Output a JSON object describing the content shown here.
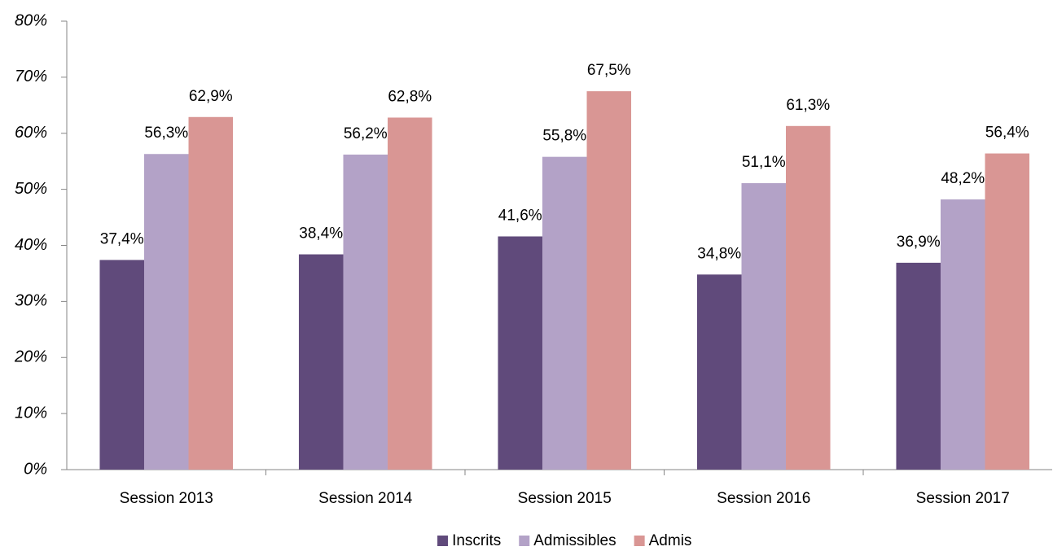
{
  "chart_data": {
    "type": "bar",
    "categories": [
      "Session 2013",
      "Session 2014",
      "Session 2015",
      "Session 2016",
      "Session 2017"
    ],
    "series": [
      {
        "name": "Inscrits",
        "color": "#604a7b",
        "label_color": "#000000",
        "values": [
          37.4,
          38.4,
          41.6,
          34.8,
          36.9
        ],
        "value_labels": [
          "37,4%",
          "38,4%",
          "41,6%",
          "34,8%",
          "36,9%"
        ]
      },
      {
        "name": "Admissibles",
        "color": "#b3a2c7",
        "label_color": "#604a7b",
        "values": [
          56.3,
          56.2,
          55.8,
          51.1,
          48.2
        ],
        "value_labels": [
          "56,3%",
          "56,2%",
          "55,8%",
          "51,1%",
          "48,2%"
        ]
      },
      {
        "name": "Admis",
        "color": "#d99694",
        "label_color": "#632523",
        "values": [
          62.9,
          62.8,
          67.5,
          61.3,
          56.4
        ],
        "value_labels": [
          "62,9%",
          "62,8%",
          "67,5%",
          "61,3%",
          "56,4%"
        ]
      }
    ],
    "ylim": [
      0,
      80
    ],
    "yticks": [
      {
        "value": 0,
        "label": "0%"
      },
      {
        "value": 10,
        "label": "10%"
      },
      {
        "value": 20,
        "label": "20%"
      },
      {
        "value": 30,
        "label": "30%"
      },
      {
        "value": 40,
        "label": "40%"
      },
      {
        "value": 50,
        "label": "50%"
      },
      {
        "value": 60,
        "label": "60%"
      },
      {
        "value": 70,
        "label": "70%"
      },
      {
        "value": 80,
        "label": "80%"
      }
    ],
    "legend": "bottom"
  }
}
